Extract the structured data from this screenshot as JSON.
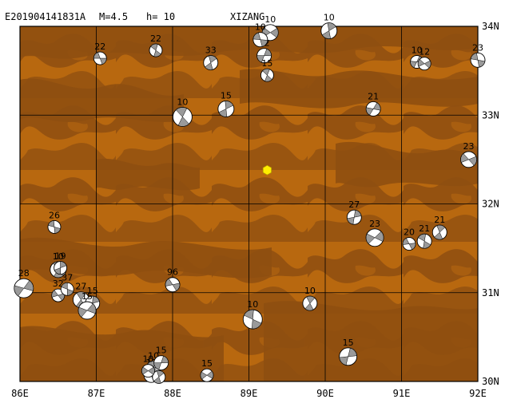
{
  "header": {
    "event_id": "E201904141831A",
    "magnitude_text": "M=4.5",
    "depth_text": "h= 10",
    "region": "XIZANG"
  },
  "map": {
    "lon_min": 86,
    "lon_max": 92,
    "lat_min": 30,
    "lat_max": 34,
    "lon_labels": [
      "86E",
      "87E",
      "88E",
      "89E",
      "90E",
      "91E",
      "92E"
    ],
    "lat_labels": [
      "34N",
      "33N",
      "32N",
      "31N",
      "30N"
    ],
    "colors": {
      "terrain_base": "#b8680f",
      "terrain_dark": "#8f4f10",
      "grid": "#000000",
      "epicenter": "#ffee00",
      "mechanism_compression": "#9a9a9a"
    }
  },
  "epicenter": {
    "lon": 89.24,
    "lat": 32.38
  },
  "mechanisms": [
    {
      "lon": 87.05,
      "lat": 33.64,
      "depth": "22",
      "r": 8
    },
    {
      "lon": 87.78,
      "lat": 33.73,
      "depth": "22",
      "r": 8
    },
    {
      "lon": 88.5,
      "lat": 33.59,
      "depth": "33",
      "r": 9
    },
    {
      "lon": 89.2,
      "lat": 33.67,
      "depth": "12",
      "r": 9
    },
    {
      "lon": 89.28,
      "lat": 33.93,
      "depth": "10",
      "r": 10
    },
    {
      "lon": 89.15,
      "lat": 33.85,
      "depth": "10",
      "r": 9
    },
    {
      "lon": 89.24,
      "lat": 33.45,
      "depth": "15",
      "r": 8
    },
    {
      "lon": 90.05,
      "lat": 33.95,
      "depth": "10",
      "r": 10
    },
    {
      "lon": 91.2,
      "lat": 33.6,
      "depth": "10",
      "r": 8
    },
    {
      "lon": 91.3,
      "lat": 33.58,
      "depth": "12",
      "r": 8
    },
    {
      "lon": 92.0,
      "lat": 33.62,
      "depth": "23",
      "r": 9
    },
    {
      "lon": 88.13,
      "lat": 32.98,
      "depth": "10",
      "r": 12
    },
    {
      "lon": 88.7,
      "lat": 33.07,
      "depth": "15",
      "r": 10
    },
    {
      "lon": 90.63,
      "lat": 33.07,
      "depth": "21",
      "r": 9
    },
    {
      "lon": 91.88,
      "lat": 32.5,
      "depth": "23",
      "r": 10
    },
    {
      "lon": 86.45,
      "lat": 31.74,
      "depth": "26",
      "r": 8
    },
    {
      "lon": 86.5,
      "lat": 31.26,
      "depth": "10",
      "r": 10
    },
    {
      "lon": 86.53,
      "lat": 31.28,
      "depth": "19",
      "r": 8
    },
    {
      "lon": 86.05,
      "lat": 31.05,
      "depth": "28",
      "r": 12
    },
    {
      "lon": 86.5,
      "lat": 30.97,
      "depth": "32",
      "r": 8
    },
    {
      "lon": 86.62,
      "lat": 31.04,
      "depth": "37",
      "r": 8
    },
    {
      "lon": 86.8,
      "lat": 30.92,
      "depth": "27",
      "r": 10
    },
    {
      "lon": 86.95,
      "lat": 30.88,
      "depth": "15",
      "r": 9
    },
    {
      "lon": 86.88,
      "lat": 30.8,
      "depth": "15",
      "r": 11
    },
    {
      "lon": 88.0,
      "lat": 31.09,
      "depth": "96",
      "r": 9
    },
    {
      "lon": 89.05,
      "lat": 30.7,
      "depth": "10",
      "r": 12
    },
    {
      "lon": 89.8,
      "lat": 30.88,
      "depth": "10",
      "r": 9
    },
    {
      "lon": 90.38,
      "lat": 31.85,
      "depth": "27",
      "r": 9
    },
    {
      "lon": 90.65,
      "lat": 31.62,
      "depth": "23",
      "r": 11
    },
    {
      "lon": 91.1,
      "lat": 31.55,
      "depth": "20",
      "r": 8
    },
    {
      "lon": 91.3,
      "lat": 31.58,
      "depth": "21",
      "r": 9
    },
    {
      "lon": 91.5,
      "lat": 31.68,
      "depth": "21",
      "r": 9
    },
    {
      "lon": 90.3,
      "lat": 30.28,
      "depth": "15",
      "r": 11
    },
    {
      "lon": 88.45,
      "lat": 30.07,
      "depth": "15",
      "r": 8
    },
    {
      "lon": 87.72,
      "lat": 30.07,
      "depth": "12",
      "r": 9
    },
    {
      "lon": 87.75,
      "lat": 30.15,
      "depth": "10",
      "r": 9
    },
    {
      "lon": 87.82,
      "lat": 30.05,
      "depth": "33",
      "r": 8
    },
    {
      "lon": 87.85,
      "lat": 30.21,
      "depth": "15",
      "r": 9
    },
    {
      "lon": 87.68,
      "lat": 30.12,
      "depth": "10",
      "r": 8
    }
  ]
}
